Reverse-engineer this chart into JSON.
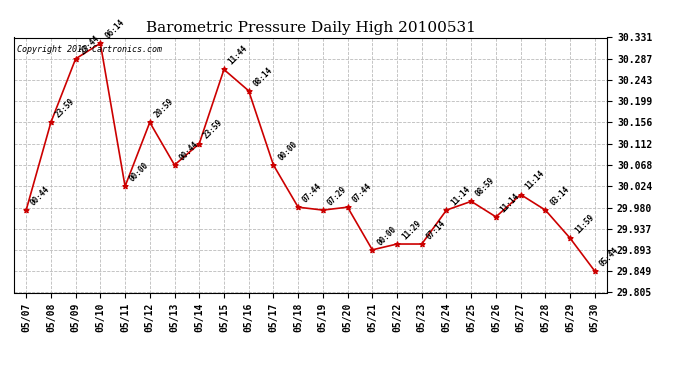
{
  "title": "Barometric Pressure Daily High 20100531",
  "copyright": "Copyright 2010 Cartronics.com",
  "dates": [
    "05/07",
    "05/08",
    "05/09",
    "05/10",
    "05/11",
    "05/12",
    "05/13",
    "05/14",
    "05/15",
    "05/16",
    "05/17",
    "05/18",
    "05/19",
    "05/20",
    "05/21",
    "05/22",
    "05/23",
    "05/24",
    "05/25",
    "05/26",
    "05/27",
    "05/28",
    "05/29",
    "05/30"
  ],
  "values": [
    29.975,
    30.156,
    30.287,
    30.319,
    30.024,
    30.156,
    30.068,
    30.112,
    30.265,
    30.221,
    30.068,
    29.981,
    29.975,
    29.981,
    29.893,
    29.905,
    29.905,
    29.975,
    29.993,
    29.961,
    30.007,
    29.975,
    29.917,
    29.849
  ],
  "annotations": [
    "00:44",
    "23:59",
    "23:44",
    "06:14",
    "00:00",
    "20:59",
    "00:44",
    "23:59",
    "11:44",
    "08:14",
    "00:00",
    "07:44",
    "07:29",
    "07:44",
    "00:00",
    "11:29",
    "07:14",
    "11:14",
    "08:59",
    "11:14",
    "11:14",
    "03:14",
    "11:59",
    "05:44"
  ],
  "ylim_min": 29.805,
  "ylim_max": 30.331,
  "yticks": [
    29.805,
    29.849,
    29.893,
    29.937,
    29.98,
    30.024,
    30.068,
    30.112,
    30.156,
    30.199,
    30.243,
    30.287,
    30.331
  ],
  "line_color": "#cc0000",
  "marker_color": "#cc0000",
  "bg_color": "#ffffff",
  "grid_color": "#bbbbbb",
  "title_fontsize": 11,
  "annot_fontsize": 5.5,
  "tick_fontsize": 7,
  "copyright_fontsize": 6
}
